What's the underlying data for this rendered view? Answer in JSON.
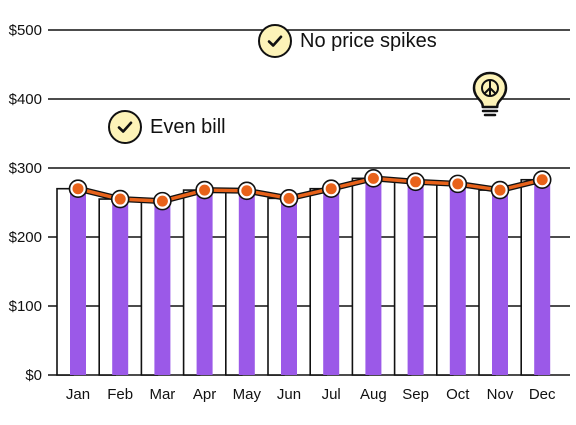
{
  "chart_data": {
    "type": "bar",
    "categories": [
      "Jan",
      "Feb",
      "Mar",
      "Apr",
      "May",
      "Jun",
      "Jul",
      "Aug",
      "Sep",
      "Oct",
      "Nov",
      "Dec"
    ],
    "series": [
      {
        "values": [
          270,
          255,
          252,
          268,
          267,
          256,
          270,
          285,
          280,
          277,
          268,
          283
        ]
      },
      {
        "values": [
          270,
          255,
          252,
          268,
          267,
          256,
          270,
          285,
          280,
          277,
          268,
          283
        ]
      }
    ],
    "series_styles": [
      "bar",
      "line"
    ],
    "ylim": [
      0,
      500
    ],
    "yticks": [
      0,
      100,
      200,
      300,
      400,
      500
    ],
    "ytick_labels": [
      "$0",
      "$100",
      "$200",
      "$300",
      "$400",
      "$500"
    ],
    "grid": true,
    "colors": {
      "bar": "#9b59e8",
      "line": "#e8621a",
      "ink": "#111111",
      "badge": "#fdf3b8"
    }
  },
  "callouts": [
    {
      "label": "No price spikes",
      "icon": "check-icon"
    },
    {
      "label": "Even bill",
      "icon": "check-icon"
    }
  ],
  "decor_icon": "lightbulb-peace-icon"
}
